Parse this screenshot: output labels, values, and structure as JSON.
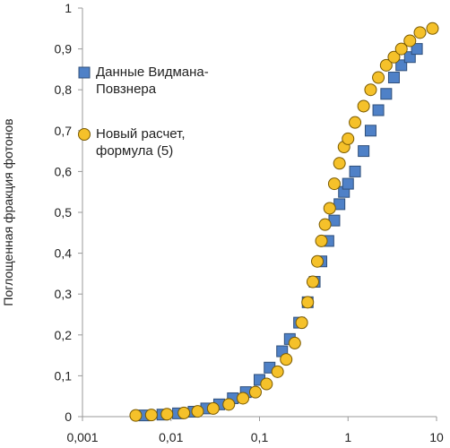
{
  "chart_data": {
    "type": "scatter",
    "log_x": true,
    "y_label": "Поглощенная фракция фотонов",
    "xlim": [
      0.001,
      10
    ],
    "xticks": [
      {
        "value": 0.001,
        "label": "0,001"
      },
      {
        "value": 0.01,
        "label": "0,01"
      },
      {
        "value": 0.1,
        "label": "0,1"
      },
      1,
      10
    ],
    "ylim": [
      0,
      1
    ],
    "yticks": [
      0,
      {
        "value": 0.1,
        "label": "0,1"
      },
      {
        "value": 0.2,
        "label": "0,2"
      },
      {
        "value": 0.3,
        "label": "0,3"
      },
      {
        "value": 0.4,
        "label": "0,4"
      },
      {
        "value": 0.5,
        "label": "0,5"
      },
      {
        "value": 0.6,
        "label": "0,6"
      },
      {
        "value": 0.7,
        "label": "0,7"
      },
      {
        "value": 0.8,
        "label": "0,8"
      },
      {
        "value": 0.9,
        "label": "0,9"
      },
      1
    ],
    "series": [
      {
        "name": "Данные Видмана-Повзнера",
        "color": "#4f81c7",
        "marker": "square",
        "x": [
          0.005,
          0.008,
          0.012,
          0.018,
          0.025,
          0.035,
          0.05,
          0.07,
          0.1,
          0.13,
          0.18,
          0.22,
          0.28,
          0.35,
          0.42,
          0.5,
          0.6,
          0.7,
          0.8,
          0.9,
          1.0,
          1.2,
          1.5,
          1.8,
          2.2,
          2.7,
          3.3,
          4.0,
          5.0,
          6.0
        ],
        "values": [
          0.003,
          0.005,
          0.008,
          0.012,
          0.02,
          0.03,
          0.045,
          0.06,
          0.09,
          0.12,
          0.16,
          0.19,
          0.23,
          0.28,
          0.33,
          0.38,
          0.43,
          0.48,
          0.52,
          0.55,
          0.57,
          0.6,
          0.65,
          0.7,
          0.75,
          0.79,
          0.83,
          0.86,
          0.88,
          0.9
        ]
      },
      {
        "name": "Новый расчет, формула (5)",
        "color": "#f5c12a",
        "marker": "circle",
        "x": [
          0.004,
          0.006,
          0.009,
          0.014,
          0.02,
          0.03,
          0.045,
          0.065,
          0.09,
          0.12,
          0.16,
          0.2,
          0.25,
          0.3,
          0.35,
          0.4,
          0.45,
          0.5,
          0.55,
          0.62,
          0.7,
          0.8,
          0.9,
          1.0,
          1.2,
          1.5,
          1.8,
          2.2,
          2.7,
          3.3,
          4.0,
          5.0,
          6.5,
          9.0
        ],
        "values": [
          0.003,
          0.004,
          0.006,
          0.009,
          0.013,
          0.02,
          0.03,
          0.045,
          0.06,
          0.08,
          0.11,
          0.14,
          0.18,
          0.23,
          0.28,
          0.33,
          0.38,
          0.43,
          0.47,
          0.51,
          0.57,
          0.62,
          0.66,
          0.68,
          0.72,
          0.76,
          0.8,
          0.83,
          0.86,
          0.88,
          0.9,
          0.92,
          0.94,
          0.95
        ]
      }
    ]
  }
}
